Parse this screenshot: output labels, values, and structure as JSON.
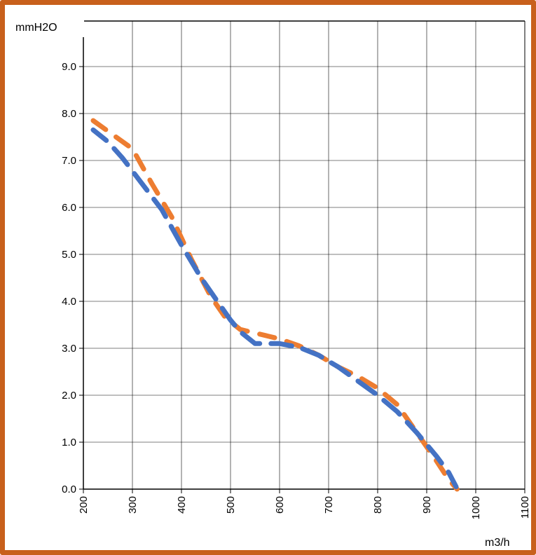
{
  "chart_data": {
    "type": "line",
    "xlabel": "m3/h",
    "ylabel": "mmH2O",
    "xlim": [
      200,
      1100
    ],
    "ylim": [
      0,
      9.9
    ],
    "x_ticks": [
      200,
      300,
      400,
      500,
      600,
      700,
      800,
      900,
      1000,
      1100
    ],
    "x_tick_labels": [
      "200",
      "300",
      "400",
      "500",
      "600",
      "700",
      "800",
      "900",
      "1000",
      "1100"
    ],
    "y_ticks": [
      0,
      1,
      2,
      3,
      4,
      5,
      6,
      7,
      8,
      9
    ],
    "y_tick_labels": [
      "0.0",
      "1.0",
      "2.0",
      "3.0",
      "4.0",
      "5.0",
      "6.0",
      "7.0",
      "8.0",
      "9.0"
    ],
    "grid": true,
    "legend": "none",
    "series": [
      {
        "color": "#ed7d31",
        "line_style": "dashed",
        "points": [
          [
            220,
            7.85
          ],
          [
            260,
            7.55
          ],
          [
            300,
            7.25
          ],
          [
            340,
            6.5
          ],
          [
            380,
            5.8
          ],
          [
            420,
            4.9
          ],
          [
            460,
            4.1
          ],
          [
            490,
            3.65
          ],
          [
            520,
            3.4
          ],
          [
            560,
            3.3
          ],
          [
            600,
            3.2
          ],
          [
            640,
            3.05
          ],
          [
            680,
            2.85
          ],
          [
            720,
            2.6
          ],
          [
            760,
            2.4
          ],
          [
            800,
            2.15
          ],
          [
            840,
            1.8
          ],
          [
            880,
            1.2
          ],
          [
            920,
            0.6
          ],
          [
            945,
            0.2
          ],
          [
            962,
            0
          ]
        ]
      },
      {
        "color": "#4472c4",
        "line_style": "dashed",
        "points": [
          [
            220,
            7.65
          ],
          [
            250,
            7.4
          ],
          [
            280,
            7.05
          ],
          [
            320,
            6.5
          ],
          [
            360,
            5.95
          ],
          [
            400,
            5.2
          ],
          [
            440,
            4.5
          ],
          [
            470,
            4.05
          ],
          [
            500,
            3.6
          ],
          [
            520,
            3.35
          ],
          [
            550,
            3.1
          ],
          [
            600,
            3.1
          ],
          [
            640,
            3.02
          ],
          [
            680,
            2.85
          ],
          [
            720,
            2.6
          ],
          [
            760,
            2.3
          ],
          [
            800,
            2.0
          ],
          [
            840,
            1.65
          ],
          [
            880,
            1.2
          ],
          [
            920,
            0.7
          ],
          [
            945,
            0.35
          ],
          [
            960,
            0.05
          ]
        ]
      }
    ]
  }
}
